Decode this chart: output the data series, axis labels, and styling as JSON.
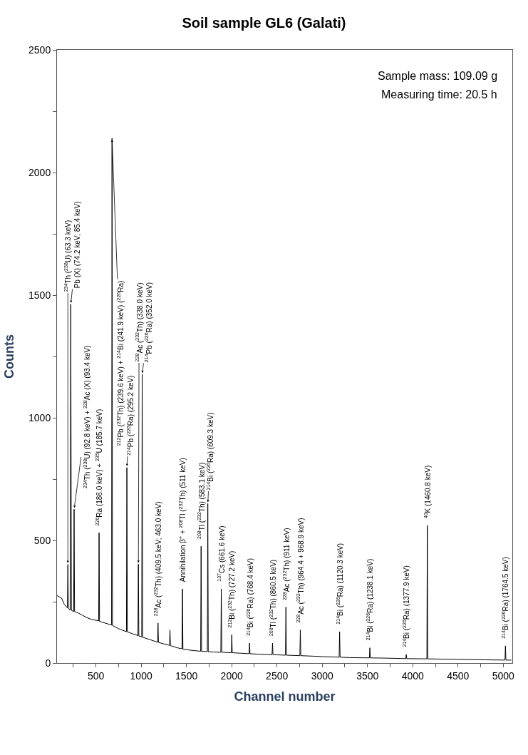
{
  "chart_data": {
    "type": "line",
    "title": "Soil sample GL6 (Galati)",
    "xlabel": "Channel number",
    "ylabel": "Counts",
    "x": [
      70,
      120,
      150,
      185,
      190,
      195,
      215,
      222,
      229,
      254,
      259,
      264,
      300,
      350,
      400,
      450,
      530,
      535,
      540,
      600,
      673,
      678,
      683,
      750,
      837,
      842,
      847,
      900,
      964,
      969,
      974,
      1006,
      1011,
      1016,
      1100,
      1181,
      1186,
      1191,
      1250,
      1313,
      1318,
      1323,
      1400,
      1451,
      1456,
      1461,
      1550,
      1657,
      1662,
      1667,
      1731,
      1736,
      1741,
      1800,
      1880,
      1885,
      1890,
      1996,
      2001,
      2006,
      2100,
      2192,
      2197,
      2202,
      2300,
      2446,
      2451,
      2456,
      2594,
      2599,
      2604,
      2753,
      2758,
      2763,
      2900,
      3000,
      3187,
      3192,
      3197,
      3300,
      3521,
      3526,
      3531,
      3700,
      3923,
      3928,
      3933,
      4156,
      4161,
      4166,
      4500,
      4800,
      5019,
      5024,
      5029,
      5090
    ],
    "series": [
      {
        "color": "#000000",
        "values": [
          275,
          265,
          240,
          225,
          402,
          225,
          215,
          1463,
          215,
          210,
          627,
          210,
          205,
          195,
          185,
          178,
          172,
          531,
          170,
          163,
          155,
          2140,
          153,
          140,
          128,
          797,
          127,
          120,
          112,
          403,
          110,
          107,
          1177,
          105,
          95,
          85,
          163,
          84,
          78,
          72,
          135,
          71,
          62,
          58,
          302,
          57,
          52,
          48,
          476,
          48,
          47,
          650,
          46,
          45,
          44,
          302,
          44,
          42,
          116,
          42,
          40,
          38,
          81,
          38,
          36,
          34,
          81,
          34,
          32,
          228,
          32,
          30,
          135,
          30,
          28,
          26,
          24,
          128,
          24,
          22,
          21,
          62,
          21,
          20,
          18,
          35,
          18,
          17,
          561,
          17,
          15,
          13,
          12,
          70,
          12,
          12
        ]
      }
    ],
    "xlim": [
      70,
      5100
    ],
    "xticks": [
      {
        "value": 250,
        "label": null
      },
      500,
      {
        "value": 750,
        "label": null
      },
      1000,
      {
        "value": 1250,
        "label": null
      },
      1500,
      {
        "value": 1750,
        "label": null
      },
      2000,
      {
        "value": 2250,
        "label": null
      },
      2500,
      {
        "value": 2750,
        "label": null
      },
      3000,
      {
        "value": 3250,
        "label": null
      },
      3500,
      {
        "value": 3750,
        "label": null
      },
      4000,
      {
        "value": 4250,
        "label": null
      },
      4500,
      {
        "value": 4750,
        "label": null
      },
      5000
    ],
    "ylim": [
      0,
      2500
    ],
    "yticks": [
      0,
      {
        "value": 250,
        "label": null
      },
      500,
      {
        "value": 750,
        "label": null
      },
      1000,
      {
        "value": 1250,
        "label": null
      },
      1500,
      {
        "value": 1750,
        "label": null
      },
      2000,
      {
        "value": 2250,
        "label": null
      },
      2500
    ],
    "line_style": "solid",
    "annotations": [
      "Sample mass: 109.09 g",
      "Measuring time: 20.5 h",
      {
        "text": "$^{234}$Th ($^{238}$U) (63.3 keV)",
        "x": 190,
        "y": 402
      },
      {
        "text": "Pb (X) (74.2 keV; 85.4 keV)",
        "x": 222,
        "y": 1463
      },
      {
        "text": "$^{234}$Th ($^{238}$U) (92.8 keV) + $^{228}$Ac (X) (93.4 keV)",
        "x": 259,
        "y": 627
      },
      {
        "text": "$^{226}$Ra (186.0 keV) + $^{235}$U (185.7 keV)",
        "x": 535,
        "y": 531
      },
      {
        "text": "$^{212}$Pb ($^{232}$Th) (239.6 keV) + $^{214}$Bi (241.9 keV) ($^{226}$Ra)",
        "x": 678,
        "y": 2140
      },
      {
        "text": "$^{214}$Pb ($^{226}$Ra) (295.2 keV)",
        "x": 842,
        "y": 797
      },
      {
        "text": "$^{228}$Ac ($^{232}$Th) (338.0 keV)",
        "x": 969,
        "y": 403
      },
      {
        "text": "$^{214}$Pb ($^{226}$Ra) (352.0 keV)",
        "x": 1011,
        "y": 1177
      },
      {
        "text": "$^{228}$Ac ($^{232}$Th) (409.5 keV; 463.0 keV)",
        "x": 1186,
        "y": 163
      },
      {
        "text": "Annihilation β$^{+}$ + $^{208}$Tl ($^{232}$Th) (511 keV)",
        "x": 1456,
        "y": 302
      },
      {
        "text": "$^{208}$Tl ($^{232}$Th) (583.1 keV)",
        "x": 1662,
        "y": 476
      },
      {
        "text": "$^{214}$Bi ($^{226}$Ra) (609.3 keV)",
        "x": 1736,
        "y": 650
      },
      {
        "text": "$^{137}$Cs (661.6 keV)",
        "x": 1885,
        "y": 302
      },
      {
        "text": "$^{212}$Bi ($^{232}$Th) (727.2 keV)",
        "x": 2001,
        "y": 116
      },
      {
        "text": "$^{214}$Bi ($^{226}$Ra) (768.4 keV)",
        "x": 2197,
        "y": 81
      },
      {
        "text": "$^{208}$Tl ($^{232}$Th) (860.5 keV)",
        "x": 2451,
        "y": 81
      },
      {
        "text": "$^{228}$Ac ($^{232}$Th) (911 keV)",
        "x": 2599,
        "y": 228
      },
      {
        "text": "$^{228}$Ac ($^{232}$Th) (964.4 + 968.9 keV)",
        "x": 2758,
        "y": 135
      },
      {
        "text": "$^{214}$Bi ($^{226}$Ra) (1120.3 keV)",
        "x": 3192,
        "y": 128
      },
      {
        "text": "$^{214}$Bi ($^{226}$Ra) (1238.1 keV)",
        "x": 3526,
        "y": 62
      },
      {
        "text": "$^{214}$Bi ($^{226}$Ra) (1377.9 keV)",
        "x": 3928,
        "y": 35
      },
      {
        "text": "$^{40}$K (1460.8 keV)",
        "x": 4161,
        "y": 561
      },
      {
        "text": "$^{214}$Bi ($^{226}$Ra) (1764.5 keV)",
        "x": 5024,
        "y": 70
      }
    ]
  }
}
